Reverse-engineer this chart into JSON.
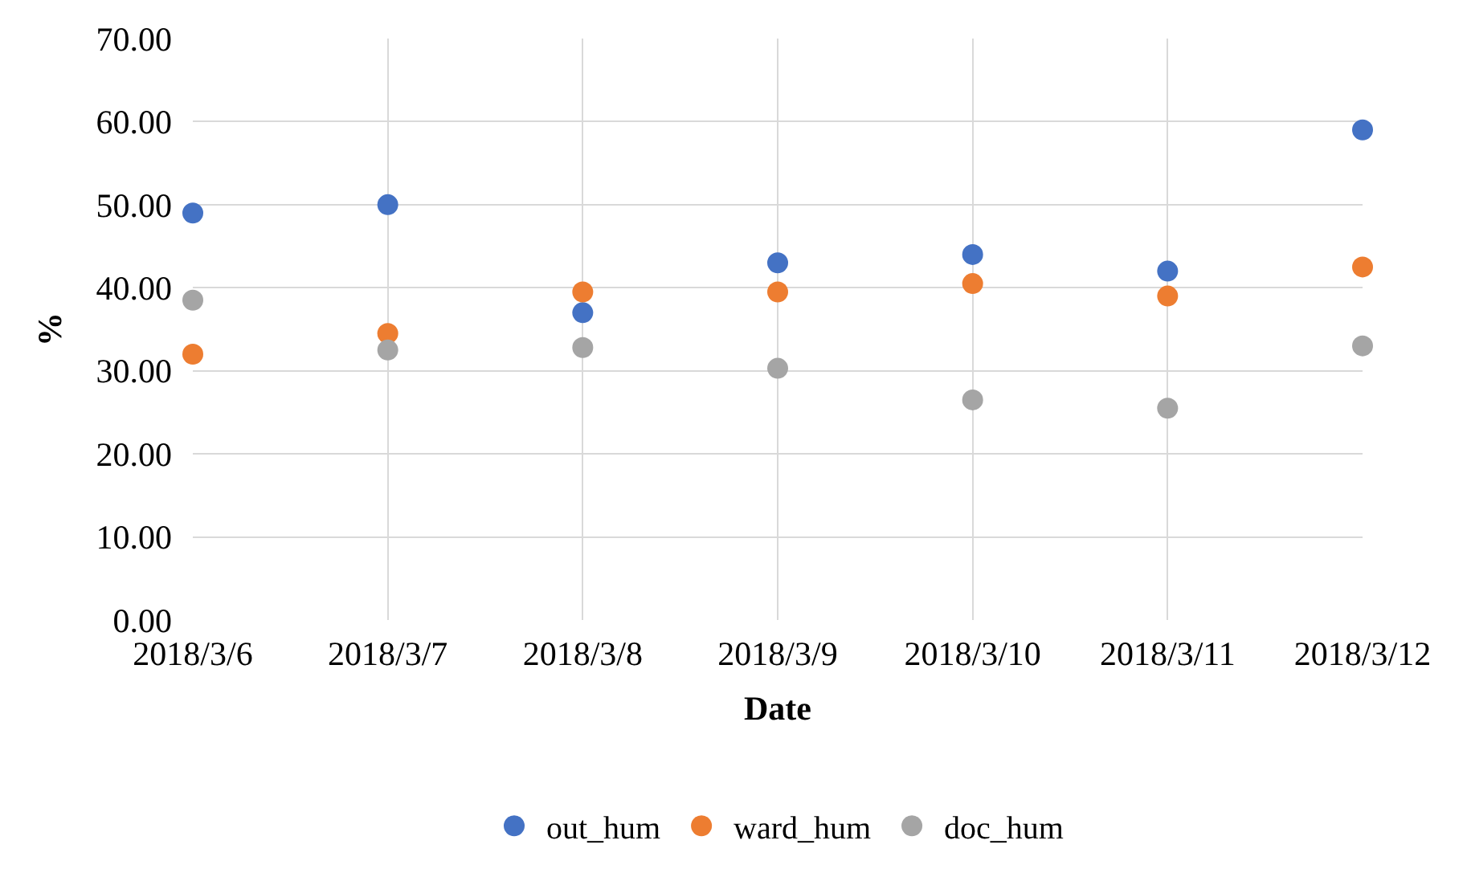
{
  "chart_data": {
    "type": "scatter",
    "xlabel": "Date",
    "ylabel": "%",
    "categories": [
      "2018/3/6",
      "2018/3/7",
      "2018/3/8",
      "2018/3/9",
      "2018/3/10",
      "2018/3/11",
      "2018/3/12"
    ],
    "series": [
      {
        "name": "out_hum",
        "color": "#4472c4",
        "values": [
          49.0,
          50.0,
          37.0,
          43.0,
          44.0,
          42.0,
          59.0
        ]
      },
      {
        "name": "ward_hum",
        "color": "#ed7d31",
        "values": [
          32.0,
          34.5,
          39.5,
          39.5,
          40.5,
          39.0,
          42.5
        ]
      },
      {
        "name": "doc_hum",
        "color": "#a5a5a5",
        "values": [
          38.5,
          32.5,
          32.8,
          30.3,
          26.5,
          25.5,
          33.0
        ]
      }
    ],
    "ylim": [
      0,
      70
    ],
    "yticks": [
      {
        "value": 0,
        "label": "0.00"
      },
      {
        "value": 10,
        "label": "10.00"
      },
      {
        "value": 20,
        "label": "20.00"
      },
      {
        "value": 30,
        "label": "30.00"
      },
      {
        "value": 40,
        "label": "40.00"
      },
      {
        "value": 50,
        "label": "50.00"
      },
      {
        "value": 60,
        "label": "60.00"
      },
      {
        "value": 70,
        "label": "70.00"
      }
    ],
    "grid": true,
    "legend": "bottom",
    "marker": "circle"
  }
}
